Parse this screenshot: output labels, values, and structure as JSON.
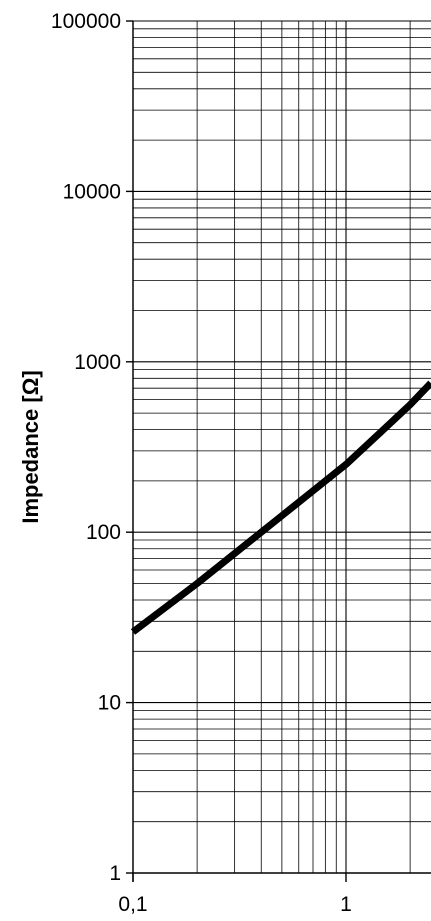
{
  "chart_data": {
    "type": "line",
    "title": "",
    "xlabel": "",
    "ylabel": "Impedance [Ω]",
    "x_scale": "log",
    "y_scale": "log",
    "xlim": [
      0.1,
      2.5
    ],
    "ylim": [
      1,
      100000
    ],
    "x_ticks": [
      {
        "value": 0.1,
        "label": "0,1"
      },
      {
        "value": 1,
        "label": "1"
      }
    ],
    "y_ticks": [
      {
        "value": 1,
        "label": "1"
      },
      {
        "value": 10,
        "label": "10"
      },
      {
        "value": 100,
        "label": "100"
      },
      {
        "value": 1000,
        "label": "1000"
      },
      {
        "value": 10000,
        "label": "10000"
      },
      {
        "value": 100000,
        "label": "100000"
      }
    ],
    "grid": true,
    "legend": "none",
    "series": [
      {
        "color": "#000000",
        "x": [
          0.1,
          0.2,
          0.3,
          0.5,
          0.7,
          1.0,
          1.5,
          2.0,
          2.5
        ],
        "y": [
          26,
          50,
          75,
          125,
          175,
          250,
          400,
          560,
          750
        ]
      }
    ]
  }
}
